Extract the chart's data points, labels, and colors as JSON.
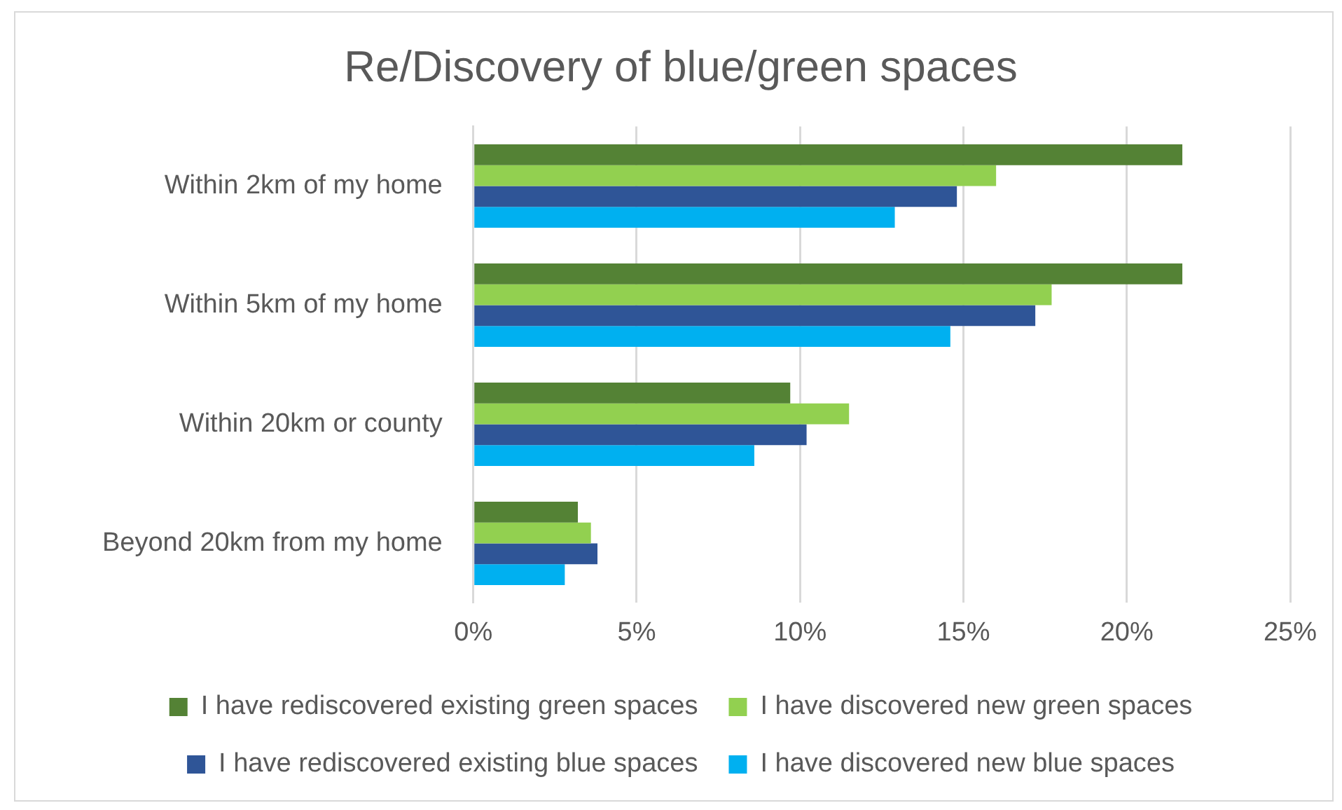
{
  "chart_data": {
    "type": "bar",
    "orientation": "horizontal",
    "title": "Re/Discovery of blue/green spaces",
    "categories": [
      "Within 2km of my home",
      "Within 5km of my home",
      "Within 20km or county",
      "Beyond 20km from my home"
    ],
    "series": [
      {
        "name": "I have rediscovered existing green spaces",
        "color": "#548235",
        "values": [
          21.7,
          21.7,
          9.7,
          3.2
        ]
      },
      {
        "name": "I have discovered new green spaces",
        "color": "#92d050",
        "values": [
          16.0,
          17.7,
          11.5,
          3.6
        ]
      },
      {
        "name": "I have rediscovered existing blue spaces",
        "color": "#2f5597",
        "values": [
          14.8,
          17.2,
          10.2,
          3.8
        ]
      },
      {
        "name": "I have discovered new blue spaces",
        "color": "#00b0f0",
        "values": [
          12.9,
          14.6,
          8.6,
          2.8
        ]
      }
    ],
    "xlim": [
      0,
      25
    ],
    "xticks": [
      {
        "value": 0,
        "label": "0%"
      },
      {
        "value": 5,
        "label": "5%"
      },
      {
        "value": 10,
        "label": "10%"
      },
      {
        "value": 15,
        "label": "15%"
      },
      {
        "value": 20,
        "label": "20%"
      },
      {
        "value": 25,
        "label": "25%"
      }
    ],
    "grid": "x",
    "legend": "bottom"
  }
}
